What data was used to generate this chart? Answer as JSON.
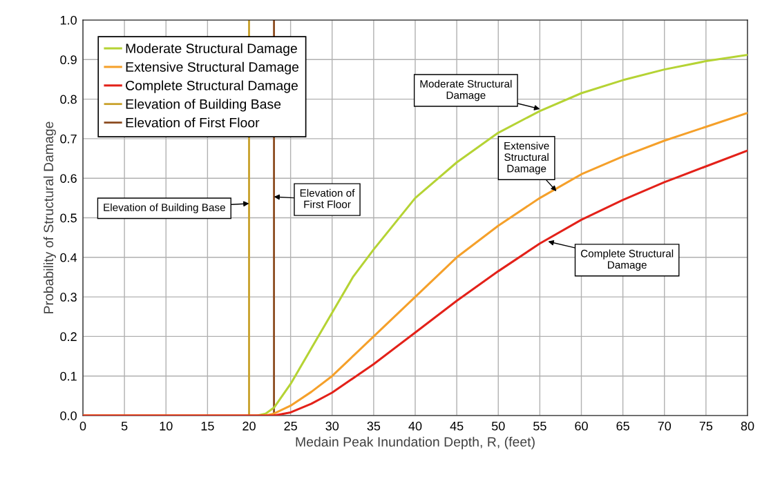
{
  "chart_data": {
    "type": "line",
    "xlabel": "Medain Peak Inundation Depth, R, (feet)",
    "ylabel": "Probability of Structural Damage",
    "xlim": [
      0,
      80
    ],
    "xticks": [
      0,
      5,
      10,
      15,
      20,
      25,
      30,
      35,
      40,
      45,
      50,
      55,
      60,
      65,
      70,
      75,
      80
    ],
    "ylim": [
      0,
      1
    ],
    "yticks": [
      {
        "value": 0,
        "label": "0.0"
      },
      0.1,
      0.2,
      0.3,
      0.4,
      0.5,
      0.6,
      0.7,
      0.8,
      0.9,
      {
        "value": 1,
        "label": "1.0"
      }
    ],
    "grid": true,
    "legend": "top left",
    "marker": "none",
    "line_style": "solid",
    "series": [
      {
        "name": "Moderate Structural Damage",
        "color": "#b5d334",
        "x": [
          0,
          21,
          22,
          23,
          25,
          27.5,
          30,
          32.5,
          35,
          40,
          45,
          50,
          55,
          60,
          65,
          70,
          75,
          80
        ],
        "values": [
          0,
          0,
          0.005,
          0.02,
          0.08,
          0.17,
          0.26,
          0.35,
          0.42,
          0.55,
          0.64,
          0.715,
          0.77,
          0.815,
          0.848,
          0.875,
          0.896,
          0.912
        ]
      },
      {
        "name": "Extensive Structural Damage",
        "color": "#f5a02a",
        "x": [
          0,
          22,
          23,
          25,
          27.5,
          30,
          35,
          40,
          45,
          50,
          55,
          60,
          65,
          70,
          75,
          80
        ],
        "values": [
          0,
          0,
          0.005,
          0.025,
          0.06,
          0.1,
          0.2,
          0.3,
          0.4,
          0.48,
          0.55,
          0.61,
          0.655,
          0.695,
          0.73,
          0.765
        ]
      },
      {
        "name": "Complete Structural Damage",
        "color": "#e32119",
        "x": [
          0,
          23,
          25,
          27.5,
          30,
          35,
          40,
          45,
          50,
          55,
          60,
          65,
          70,
          75,
          80
        ],
        "values": [
          0,
          0,
          0.008,
          0.03,
          0.058,
          0.13,
          0.21,
          0.29,
          0.365,
          0.435,
          0.495,
          0.545,
          0.59,
          0.63,
          0.67
        ]
      }
    ],
    "ref_lines": [
      {
        "axis": "x",
        "value": 20,
        "label": "Elevation of Building Base",
        "color": "#c8a028",
        "line_style": "solid"
      },
      {
        "axis": "x",
        "value": 23,
        "label": "Elevation of First Floor",
        "color": "#8b4a1e",
        "line_style": "solid"
      }
    ],
    "annotations": [
      {
        "text": "Elevation of Building Base",
        "x": 20,
        "y": 0.536
      },
      {
        "text": "Elevation of\nFirst Floor",
        "x": 23,
        "y": 0.553
      },
      {
        "text": "Moderate Structural\nDamage",
        "x": 55,
        "y": 0.775
      },
      {
        "text": "Extensive\nStructural\nDamage",
        "x": 57,
        "y": 0.567
      },
      {
        "text": "Complete Structural\nDamage",
        "x": 56,
        "y": 0.44
      }
    ]
  }
}
